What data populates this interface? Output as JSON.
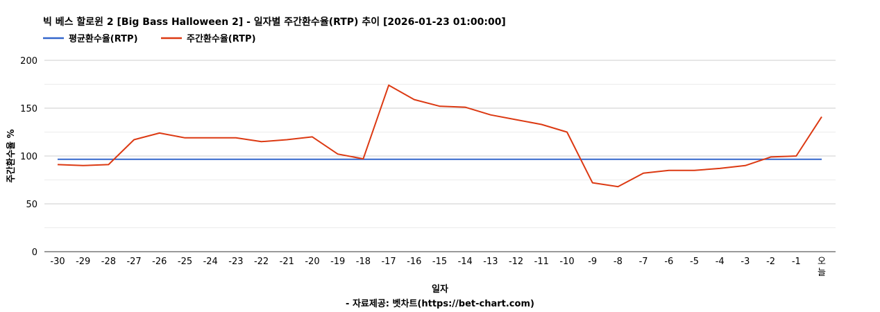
{
  "chart_data": {
    "type": "line",
    "title": "빅 베스 할로윈 2 [Big Bass Halloween 2] - 일자별 주간환수율(RTP) 추이 [2026-01-23 01:00:00]",
    "xlabel": "일자",
    "ylabel": "주간환수율 %",
    "source": "- 자료제공: 벳차트(https://bet-chart.com)",
    "categories": [
      "-30",
      "-29",
      "-28",
      "-27",
      "-26",
      "-25",
      "-24",
      "-23",
      "-22",
      "-21",
      "-20",
      "-19",
      "-18",
      "-17",
      "-16",
      "-15",
      "-14",
      "-13",
      "-12",
      "-11",
      "-10",
      "-9",
      "-8",
      "-7",
      "-6",
      "-5",
      "-4",
      "-3",
      "-2",
      "-1",
      "오늘"
    ],
    "ylim": [
      0,
      200
    ],
    "yticks": [
      0,
      50,
      100,
      150,
      200
    ],
    "grid": true,
    "legend": "top-left",
    "series": [
      {
        "name": "평균환수율(RTP)",
        "color": "#3366cc",
        "values": [
          96.5,
          96.5,
          96.5,
          96.5,
          96.5,
          96.5,
          96.5,
          96.5,
          96.5,
          96.5,
          96.5,
          96.5,
          96.5,
          96.5,
          96.5,
          96.5,
          96.5,
          96.5,
          96.5,
          96.5,
          96.5,
          96.5,
          96.5,
          96.5,
          96.5,
          96.5,
          96.5,
          96.5,
          96.5,
          96.5,
          96.5
        ]
      },
      {
        "name": "주간환수율(RTP)",
        "color": "#dc3912",
        "values": [
          91,
          90,
          91,
          117,
          124,
          119,
          119,
          119,
          115,
          117,
          120,
          102,
          97,
          174,
          159,
          152,
          151,
          143,
          138,
          133,
          125,
          72,
          68,
          82,
          85,
          85,
          87,
          90,
          99,
          100,
          141
        ]
      }
    ]
  }
}
